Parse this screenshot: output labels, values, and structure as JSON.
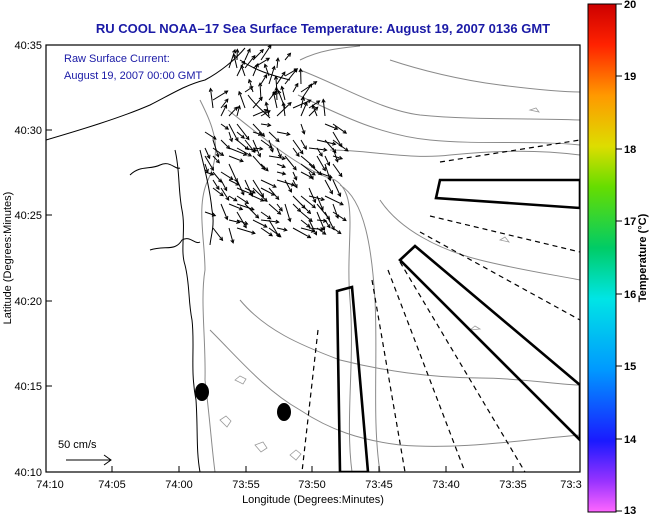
{
  "title": "RU COOL  NOAA–17  Sea Surface Temperature:  August 19, 2007 0136 GMT",
  "current_label": {
    "line1": "Raw Surface Current:",
    "line2": "August 19, 2007 00:00 GMT"
  },
  "scale_label": "50 cm/s",
  "axes": {
    "xlabel": "Longitude (Degrees:Minutes)",
    "ylabel": "Latitude (Degrees:Minutes)",
    "x_ticks": [
      "74:10",
      "74:05",
      "74:00",
      "73:55",
      "73:50",
      "73:45",
      "73:40",
      "73:35",
      "73:3"
    ],
    "y_ticks": [
      "40:35",
      "40:30",
      "40:25",
      "40:20",
      "40:15",
      "40:10"
    ]
  },
  "colorbar": {
    "label": "Temperature (°C)",
    "ticks": [
      "20",
      "19",
      "18",
      "17",
      "16",
      "15",
      "14",
      "13"
    ],
    "min": 13,
    "max": 20
  },
  "colors": {
    "title": "#1a1aa6",
    "axes": "#000000",
    "contour": "#888888"
  }
}
